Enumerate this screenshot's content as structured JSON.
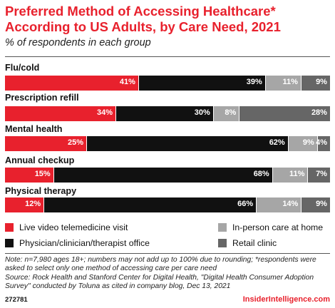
{
  "header": {
    "title": "Preferred Method of Accessing Healthcare* According to US Adults, by Care Need, 2021",
    "subtitle": "% of respondents in each group"
  },
  "chart_data": {
    "type": "bar",
    "orientation": "horizontal",
    "stacked": true,
    "categories": [
      "Flu/cold",
      "Prescription refill",
      "Mental health",
      "Annual checkup",
      "Physical therapy"
    ],
    "series": [
      {
        "name": "Live video telemedicine visit",
        "color": "#e8212d",
        "values": [
          41,
          34,
          25,
          15,
          12
        ]
      },
      {
        "name": "Physician/clinician/therapist office",
        "color": "#111111",
        "values": [
          39,
          30,
          62,
          68,
          66
        ]
      },
      {
        "name": "In-person care at home",
        "color": "#a6a6a6",
        "values": [
          11,
          8,
          9,
          11,
          14
        ]
      },
      {
        "name": "Retail clinic",
        "color": "#666666",
        "values": [
          9,
          28,
          4,
          7,
          9
        ]
      }
    ],
    "value_suffix": "%",
    "legend_position": "bottom"
  },
  "footer": {
    "note": "Note: n=7,980 ages 18+; numbers may not add up to 100% due to rounding; *respondents were asked to select only one method of accessing care per care need",
    "source": "Source: Rock Health and Stanford Center for Digital Health, \"Digital Health Consumer Adoption Survey\" conducted by Toluna as cited in company blog, Dec 13, 2021",
    "chart_id": "272781",
    "brand": "InsiderIntelligence.com"
  }
}
